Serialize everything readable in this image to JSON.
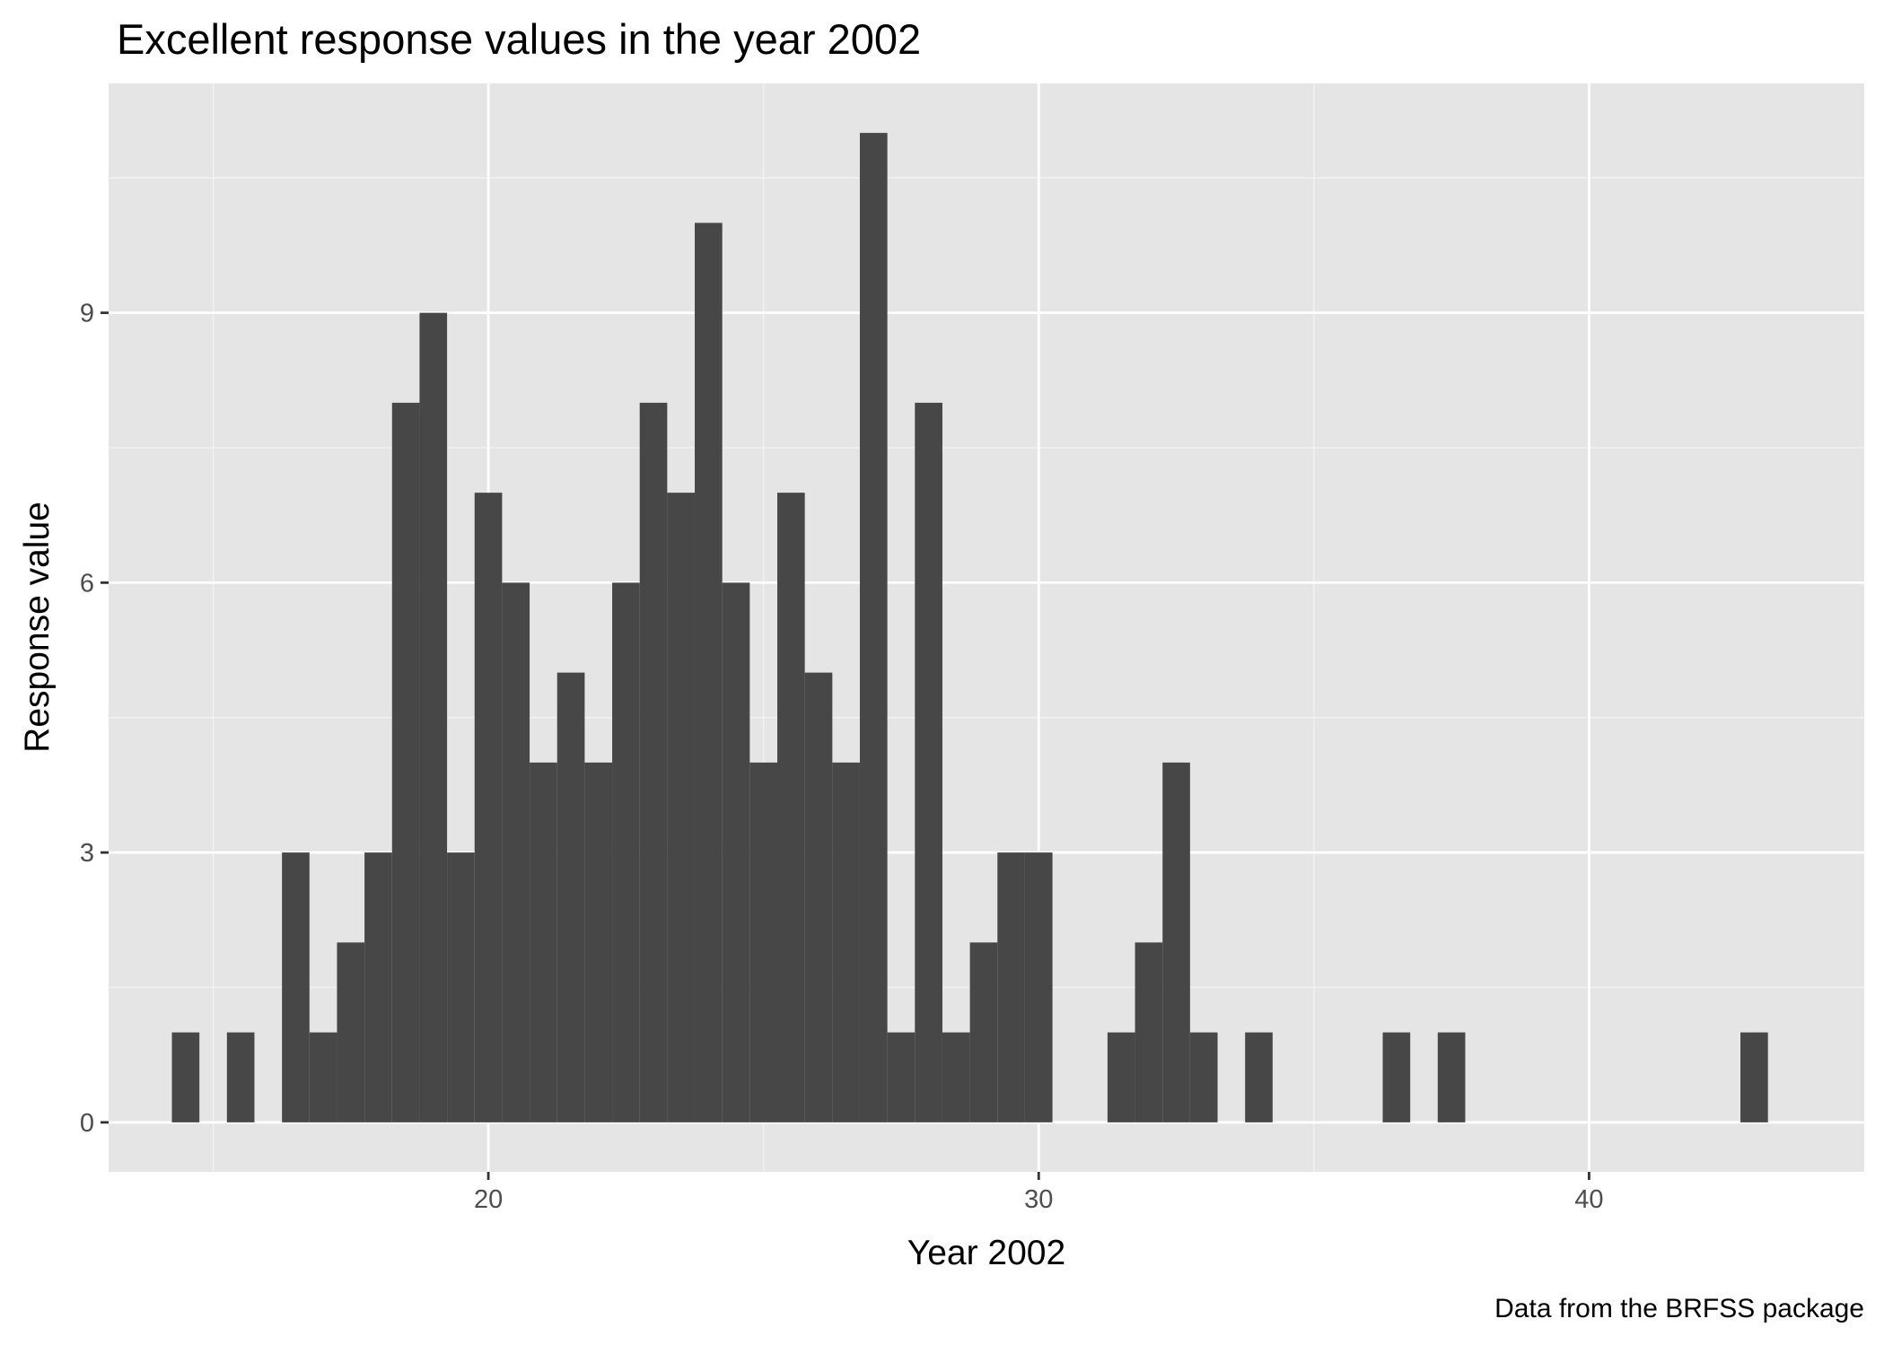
{
  "chart_data": {
    "type": "bar",
    "title": "Excellent response values in the year 2002",
    "xlabel": "Year 2002",
    "ylabel": "Response value",
    "caption": "Data from the BRFSS package",
    "xlim": [
      13.1,
      45.0
    ],
    "ylim": [
      -0.55,
      11.55
    ],
    "x_major_ticks": [
      20,
      30,
      40
    ],
    "x_minor_ticks": [
      15,
      25,
      35
    ],
    "y_major_ticks": [
      0,
      3,
      6,
      9
    ],
    "y_minor_ticks": [
      1.5,
      4.5,
      7.5,
      10.5
    ],
    "bin_width": 0.5,
    "bar_color": "#474747",
    "panel_color": "#e5e5e5",
    "grid": true,
    "legend": "none",
    "bins": [
      {
        "x": 14.5,
        "value": 1
      },
      {
        "x": 15.5,
        "value": 1
      },
      {
        "x": 16.5,
        "value": 3
      },
      {
        "x": 17.0,
        "value": 1
      },
      {
        "x": 17.5,
        "value": 2
      },
      {
        "x": 18.0,
        "value": 3
      },
      {
        "x": 18.5,
        "value": 8
      },
      {
        "x": 19.0,
        "value": 9
      },
      {
        "x": 19.5,
        "value": 3
      },
      {
        "x": 20.0,
        "value": 7
      },
      {
        "x": 20.5,
        "value": 6
      },
      {
        "x": 21.0,
        "value": 4
      },
      {
        "x": 21.5,
        "value": 5
      },
      {
        "x": 22.0,
        "value": 4
      },
      {
        "x": 22.5,
        "value": 6
      },
      {
        "x": 23.0,
        "value": 8
      },
      {
        "x": 23.5,
        "value": 7
      },
      {
        "x": 24.0,
        "value": 10
      },
      {
        "x": 24.5,
        "value": 6
      },
      {
        "x": 25.0,
        "value": 4
      },
      {
        "x": 25.5,
        "value": 7
      },
      {
        "x": 26.0,
        "value": 5
      },
      {
        "x": 26.5,
        "value": 4
      },
      {
        "x": 27.0,
        "value": 11
      },
      {
        "x": 27.5,
        "value": 1
      },
      {
        "x": 28.0,
        "value": 8
      },
      {
        "x": 28.5,
        "value": 1
      },
      {
        "x": 29.0,
        "value": 2
      },
      {
        "x": 29.5,
        "value": 3
      },
      {
        "x": 30.0,
        "value": 3
      },
      {
        "x": 31.5,
        "value": 1
      },
      {
        "x": 32.0,
        "value": 2
      },
      {
        "x": 32.5,
        "value": 4
      },
      {
        "x": 33.0,
        "value": 1
      },
      {
        "x": 34.0,
        "value": 1
      },
      {
        "x": 36.5,
        "value": 1
      },
      {
        "x": 37.5,
        "value": 1
      },
      {
        "x": 43.0,
        "value": 1
      }
    ]
  }
}
